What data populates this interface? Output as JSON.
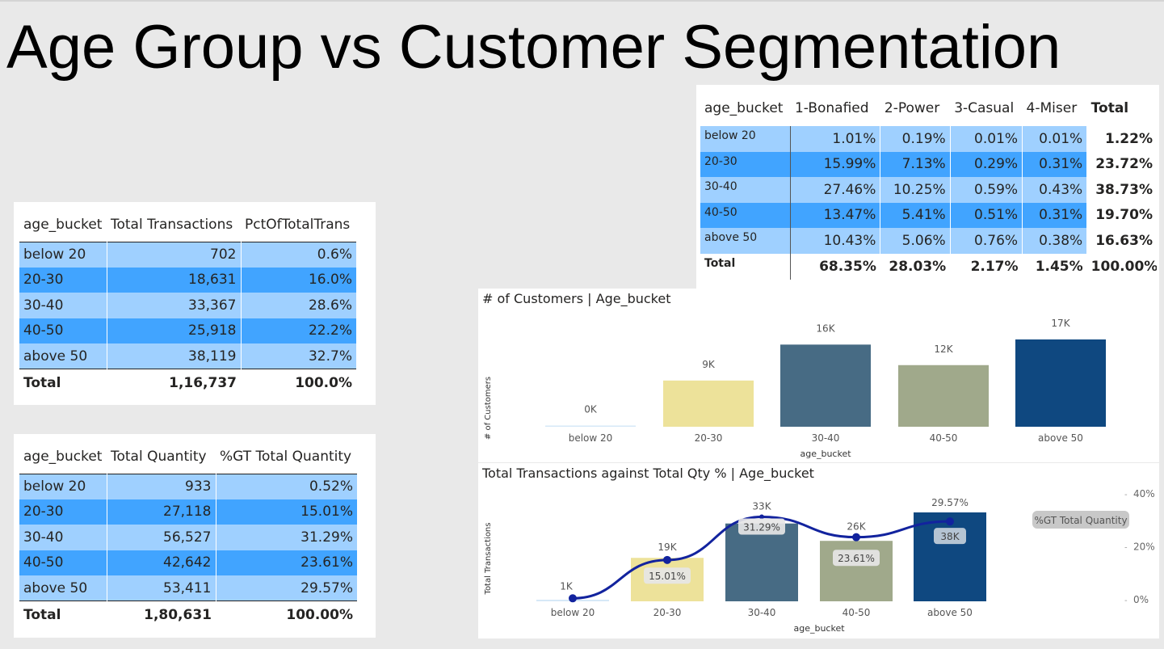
{
  "title": "Age Group vs Customer Segmentation",
  "transactions_table": {
    "headers": [
      "age_bucket",
      "Total Transactions",
      "PctOfTotalTrans"
    ],
    "rows": [
      [
        "below 20",
        "702",
        "0.6%"
      ],
      [
        "20-30",
        "18,631",
        "16.0%"
      ],
      [
        "30-40",
        "33,367",
        "28.6%"
      ],
      [
        "40-50",
        "25,918",
        "22.2%"
      ],
      [
        "above 50",
        "38,119",
        "32.7%"
      ]
    ],
    "total": [
      "Total",
      "1,16,737",
      "100.0%"
    ]
  },
  "quantity_table": {
    "headers": [
      "age_bucket",
      "Total Quantity",
      "%GT Total Quantity"
    ],
    "rows": [
      [
        "below 20",
        "933",
        "0.52%"
      ],
      [
        "20-30",
        "27,118",
        "15.01%"
      ],
      [
        "30-40",
        "56,527",
        "31.29%"
      ],
      [
        "40-50",
        "42,642",
        "23.61%"
      ],
      [
        "above 50",
        "53,411",
        "29.57%"
      ]
    ],
    "total": [
      "Total",
      "1,80,631",
      "100.00%"
    ]
  },
  "segment_table": {
    "headers": [
      "age_bucket",
      "1-Bonafied",
      "2-Power",
      "3-Casual",
      "4-Miser",
      "Total"
    ],
    "rows": [
      [
        "below 20",
        "1.01%",
        "0.19%",
        "0.01%",
        "0.01%",
        "1.22%"
      ],
      [
        "20-30",
        "15.99%",
        "7.13%",
        "0.29%",
        "0.31%",
        "23.72%"
      ],
      [
        "30-40",
        "27.46%",
        "10.25%",
        "0.59%",
        "0.43%",
        "38.73%"
      ],
      [
        "40-50",
        "13.47%",
        "5.41%",
        "0.51%",
        "0.31%",
        "19.70%"
      ],
      [
        "above 50",
        "10.43%",
        "5.06%",
        "0.76%",
        "0.38%",
        "16.63%"
      ]
    ],
    "total": [
      "Total",
      "68.35%",
      "28.03%",
      "2.17%",
      "1.45%",
      "100.00%"
    ]
  },
  "chart_data": [
    {
      "type": "bar",
      "title": "# of Customers | Age_bucket",
      "xlabel": "age_bucket",
      "ylabel": "# of Customers",
      "categories": [
        "below 20",
        "20-30",
        "30-40",
        "40-50",
        "above 50"
      ],
      "values": [
        200,
        9000,
        16000,
        12000,
        17000
      ],
      "data_labels": [
        "0K",
        "9K",
        "16K",
        "12K",
        "17K"
      ],
      "colors": [
        "#d6e8f7",
        "#ede29a",
        "#476b84",
        "#a0a98b",
        "#0f4880"
      ],
      "ylim": [
        0,
        17000
      ]
    },
    {
      "type": "bar",
      "title": "Total Transactions against Total Qty % | Age_bucket",
      "xlabel": "age_bucket",
      "ylabel": "Total Transactions",
      "categories": [
        "below 20",
        "20-30",
        "30-40",
        "40-50",
        "above 50"
      ],
      "values": [
        702,
        18631,
        33367,
        25918,
        38119
      ],
      "data_labels": [
        "1K",
        "19K",
        "33K",
        "26K",
        "38K"
      ],
      "colors": [
        "#d6e8f7",
        "#ede29a",
        "#476b84",
        "#a0a98b",
        "#0f4880"
      ],
      "ylim": [
        0,
        38119
      ],
      "line_series": {
        "name": "%GT Total Quantity",
        "values": [
          0.52,
          15.01,
          31.29,
          23.61,
          29.57
        ],
        "data_labels": [
          "",
          "15.01%",
          "31.29%",
          "23.61%",
          "29.57%"
        ],
        "color": "#12239e"
      },
      "y2_ticks": [
        "0%",
        "20%",
        "40%"
      ],
      "y2lim": [
        0,
        40
      ]
    }
  ]
}
